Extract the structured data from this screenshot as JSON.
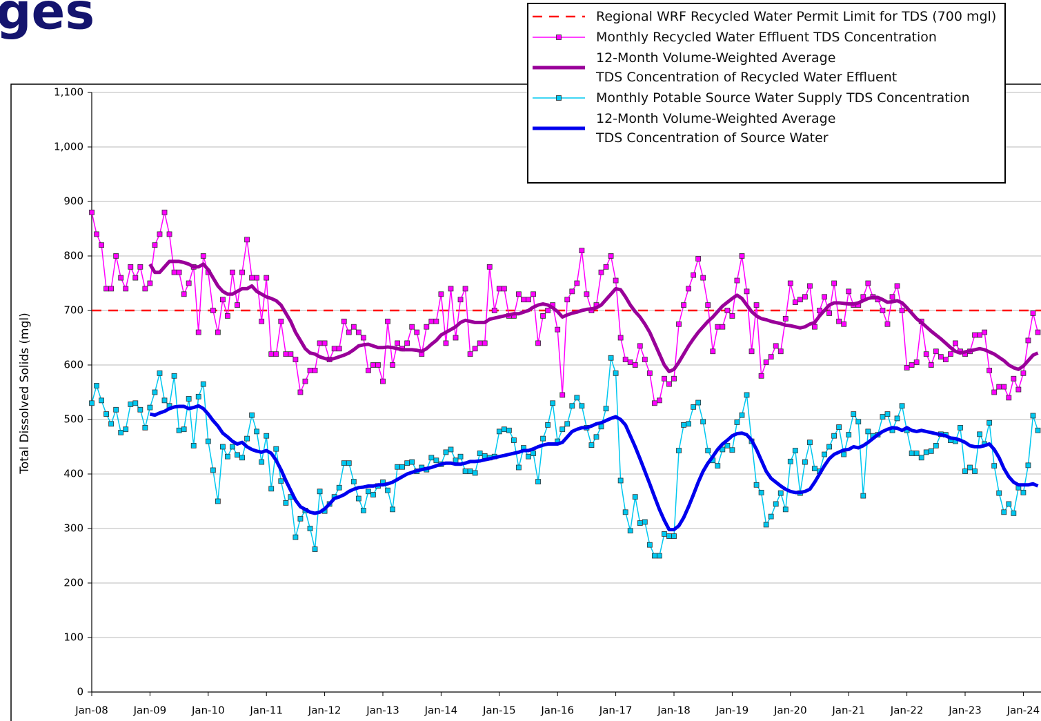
{
  "page_title": "ges",
  "chart_data": {
    "type": "line",
    "y_label": "Total Dissolved Solids (mgl)",
    "categories": [
      "Jan-08",
      null,
      null,
      null,
      null,
      null,
      null,
      null,
      null,
      null,
      null,
      null,
      "Jan-09",
      null,
      null,
      null,
      null,
      null,
      null,
      null,
      null,
      null,
      null,
      null,
      "Jan-10",
      null,
      null,
      null,
      null,
      null,
      null,
      null,
      null,
      null,
      null,
      null,
      "Jan-11",
      null,
      null,
      null,
      null,
      null,
      null,
      null,
      null,
      null,
      null,
      null,
      "Jan-12",
      null,
      null,
      null,
      null,
      null,
      null,
      null,
      null,
      null,
      null,
      null,
      "Jan-13",
      null,
      null,
      null,
      null,
      null,
      null,
      null,
      null,
      null,
      null,
      null,
      "Jan-14",
      null,
      null,
      null,
      null,
      null,
      null,
      null,
      null,
      null,
      null,
      null,
      "Jan-15",
      null,
      null,
      null,
      null,
      null,
      null,
      null,
      null,
      null,
      null,
      null,
      "Jan-16",
      null,
      null,
      null,
      null,
      null,
      null,
      null,
      null,
      null,
      null,
      null,
      "Jan-17",
      null,
      null,
      null,
      null,
      null,
      null,
      null,
      null,
      null,
      null,
      null,
      "Jan-18",
      null,
      null,
      null,
      null,
      null,
      null,
      null,
      null,
      null,
      null,
      null,
      "Jan-19",
      null,
      null,
      null,
      null,
      null,
      null,
      null,
      null,
      null,
      null,
      null,
      "Jan-20",
      null,
      null,
      null,
      null,
      null,
      null,
      null,
      null,
      null,
      null,
      null,
      "Jan-21",
      null,
      null,
      null,
      null,
      null,
      null,
      null,
      null,
      null,
      null,
      null,
      "Jan-22",
      null,
      null,
      null,
      null,
      null,
      null,
      null,
      null,
      null,
      null,
      null,
      "Jan-23",
      null,
      null,
      null,
      null,
      null,
      null,
      null,
      null,
      null,
      null,
      null,
      "Jan-24",
      null,
      null,
      null
    ],
    "ylim": [
      0,
      1100
    ],
    "yticks": [
      0,
      100,
      200,
      300,
      400,
      500,
      600,
      700,
      800,
      900,
      {
        "value": 1000,
        "label": "1,000"
      },
      {
        "value": 1100,
        "label": "1,100"
      }
    ],
    "grid": true,
    "legend": "upper right",
    "reference_lines": [
      {
        "name": "Regional WRF Recycled Water Permit Limit for TDS (700 mgl)",
        "value": 700,
        "color": "#ff0000",
        "dashed": true
      }
    ],
    "series": [
      {
        "name": "Monthly Recycled Water Effluent TDS Concentration",
        "color": "#ff00ff",
        "marker": "square",
        "width": 1.5,
        "values": [
          880,
          840,
          820,
          740,
          740,
          800,
          760,
          740,
          780,
          760,
          780,
          740,
          750,
          820,
          840,
          880,
          840,
          770,
          770,
          730,
          750,
          780,
          660,
          800,
          770,
          700,
          660,
          720,
          690,
          770,
          710,
          770,
          830,
          760,
          760,
          680,
          760,
          620,
          620,
          680,
          620,
          620,
          610,
          550,
          570,
          590,
          590,
          640,
          640,
          610,
          630,
          630,
          680,
          660,
          670,
          660,
          650,
          590,
          600,
          600,
          570,
          680,
          600,
          640,
          630,
          640,
          670,
          660,
          620,
          670,
          680,
          680,
          730,
          640,
          740,
          650,
          720,
          740,
          620,
          630,
          640,
          640,
          780,
          700,
          740,
          740,
          690,
          690,
          730,
          720,
          720,
          730,
          640,
          690,
          700,
          710,
          665,
          545,
          720,
          735,
          750,
          810,
          730,
          700,
          710,
          770,
          780,
          800,
          755,
          650,
          610,
          605,
          600,
          635,
          610,
          585,
          530,
          535,
          575,
          565,
          575,
          675,
          710,
          740,
          765,
          795,
          760,
          710,
          625,
          670,
          670,
          700,
          690,
          755,
          800,
          735,
          625,
          710,
          580,
          605,
          615,
          635,
          625,
          685,
          750,
          715,
          720,
          725,
          745,
          670,
          700,
          725,
          695,
          750,
          680,
          675,
          735,
          710,
          710,
          725,
          750,
          725,
          720,
          700,
          675,
          725,
          745,
          700,
          595,
          600,
          605,
          680,
          620,
          600,
          625,
          615,
          610,
          620,
          640,
          625,
          620,
          625,
          655,
          655,
          660,
          590,
          550,
          560,
          560,
          540,
          575,
          555,
          585,
          645,
          695,
          660
        ]
      },
      {
        "name": "12-Month Volume-Weighted Average\nTDS Concentration of Recycled Water Effluent",
        "color": "#990099",
        "width": 5,
        "values": [
          null,
          null,
          null,
          null,
          null,
          null,
          null,
          null,
          null,
          null,
          null,
          null,
          785,
          770,
          770,
          780,
          790,
          790,
          790,
          788,
          785,
          780,
          780,
          785,
          775,
          760,
          745,
          735,
          730,
          730,
          735,
          740,
          740,
          745,
          735,
          730,
          725,
          722,
          718,
          710,
          695,
          680,
          660,
          645,
          630,
          622,
          620,
          615,
          612,
          610,
          612,
          615,
          618,
          622,
          628,
          635,
          637,
          638,
          635,
          632,
          632,
          633,
          632,
          630,
          628,
          628,
          628,
          627,
          625,
          630,
          638,
          645,
          655,
          660,
          665,
          670,
          678,
          682,
          680,
          678,
          678,
          678,
          684,
          686,
          688,
          690,
          692,
          694,
          694,
          697,
          700,
          706,
          710,
          712,
          710,
          705,
          698,
          688,
          692,
          695,
          697,
          700,
          702,
          703,
          705,
          710,
          720,
          730,
          740,
          738,
          725,
          710,
          698,
          688,
          675,
          660,
          640,
          620,
          600,
          588,
          592,
          605,
          620,
          635,
          648,
          660,
          670,
          680,
          688,
          698,
          708,
          715,
          722,
          728,
          722,
          710,
          698,
          690,
          685,
          683,
          680,
          678,
          676,
          673,
          672,
          670,
          668,
          670,
          675,
          678,
          690,
          700,
          710,
          714,
          714,
          713,
          712,
          712,
          714,
          718,
          722,
          724,
          724,
          720,
          715,
          716,
          718,
          714,
          705,
          695,
          685,
          678,
          670,
          662,
          655,
          648,
          640,
          632,
          625,
          622,
          624,
          626,
          628,
          630,
          628,
          624,
          620,
          614,
          608,
          600,
          595,
          592,
          598,
          608,
          618,
          622
        ]
      },
      {
        "name": "Monthly Potable Source Water Supply TDS Concentration",
        "color": "#00c8f0",
        "marker": "square",
        "width": 1.5,
        "values": [
          530,
          562,
          535,
          510,
          492,
          518,
          476,
          482,
          528,
          530,
          518,
          485,
          522,
          550,
          585,
          535,
          525,
          580,
          480,
          482,
          538,
          452,
          542,
          565,
          460,
          407,
          350,
          450,
          432,
          450,
          435,
          430,
          465,
          508,
          478,
          422,
          470,
          373,
          446,
          387,
          347,
          358,
          284,
          318,
          333,
          300,
          262,
          368,
          332,
          345,
          358,
          375,
          420,
          420,
          386,
          355,
          333,
          368,
          362,
          378,
          385,
          370,
          335,
          413,
          413,
          420,
          422,
          405,
          412,
          408,
          430,
          425,
          418,
          440,
          445,
          425,
          432,
          405,
          405,
          402,
          438,
          433,
          430,
          432,
          478,
          482,
          480,
          462,
          412,
          448,
          432,
          438,
          386,
          465,
          490,
          530,
          460,
          482,
          492,
          525,
          540,
          525,
          485,
          453,
          468,
          487,
          520,
          613,
          585,
          388,
          330,
          296,
          358,
          310,
          312,
          270,
          250,
          250,
          290,
          286,
          286,
          443,
          490,
          492,
          523,
          531,
          496,
          443,
          425,
          415,
          445,
          452,
          444,
          495,
          508,
          545,
          460,
          380,
          366,
          307,
          322,
          345,
          365,
          335,
          423,
          443,
          365,
          422,
          458,
          410,
          405,
          436,
          450,
          470,
          486,
          436,
          472,
          510,
          496,
          360,
          478,
          470,
          472,
          505,
          510,
          480,
          502,
          525,
          480,
          438,
          438,
          430,
          440,
          442,
          452,
          473,
          472,
          462,
          460,
          485,
          405,
          412,
          405,
          473,
          455,
          494,
          415,
          365,
          330,
          345,
          328,
          375,
          366,
          416,
          507,
          480
        ]
      },
      {
        "name": "12-Month Volume-Weighted Average\nTDS Concentration of Source Water",
        "color": "#0000ee",
        "width": 5,
        "values": [
          null,
          null,
          null,
          null,
          null,
          null,
          null,
          null,
          null,
          null,
          null,
          null,
          510,
          508,
          512,
          515,
          520,
          523,
          524,
          524,
          520,
          522,
          525,
          520,
          510,
          498,
          488,
          475,
          468,
          460,
          455,
          458,
          450,
          445,
          442,
          440,
          443,
          438,
          425,
          408,
          388,
          370,
          352,
          340,
          335,
          330,
          328,
          330,
          336,
          345,
          355,
          358,
          362,
          368,
          372,
          375,
          376,
          378,
          378,
          380,
          380,
          382,
          385,
          390,
          395,
          400,
          403,
          406,
          408,
          410,
          412,
          415,
          418,
          420,
          420,
          418,
          418,
          420,
          423,
          423,
          424,
          426,
          428,
          430,
          432,
          434,
          436,
          438,
          440,
          443,
          443,
          446,
          450,
          453,
          455,
          455,
          455,
          458,
          468,
          478,
          482,
          485,
          485,
          488,
          492,
          494,
          498,
          502,
          505,
          500,
          490,
          470,
          450,
          428,
          405,
          382,
          358,
          335,
          315,
          298,
          298,
          305,
          320,
          340,
          362,
          385,
          405,
          420,
          432,
          445,
          455,
          462,
          470,
          474,
          475,
          472,
          462,
          445,
          425,
          405,
          392,
          385,
          378,
          372,
          368,
          366,
          366,
          368,
          372,
          385,
          400,
          415,
          428,
          436,
          440,
          444,
          445,
          450,
          448,
          452,
          458,
          465,
          472,
          478,
          482,
          485,
          484,
          480,
          485,
          480,
          478,
          480,
          478,
          476,
          474,
          472,
          470,
          466,
          465,
          462,
          458,
          452,
          450,
          450,
          452,
          455,
          445,
          430,
          410,
          395,
          385,
          380,
          380,
          380,
          382,
          378
        ]
      }
    ]
  }
}
